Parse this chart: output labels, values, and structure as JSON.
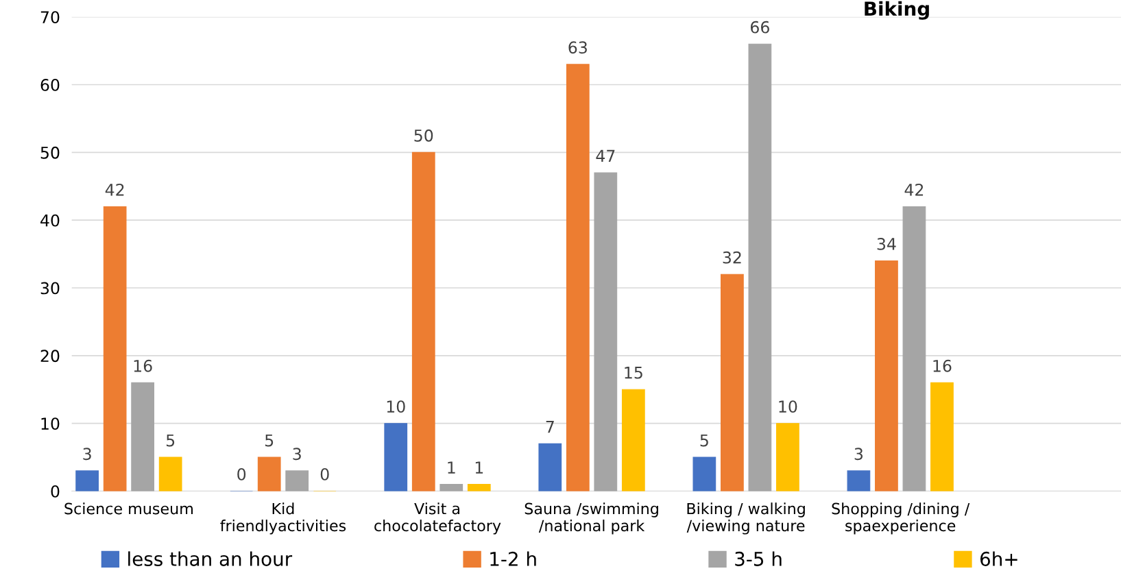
{
  "chart_data": {
    "type": "bar",
    "title": "Biking",
    "categories": [
      "Science museum",
      "Kid\nfriendlyactivities",
      "Visit a\nchocolatefactory",
      "Sauna /swimming\n/national park",
      "Biking / walking\n/viewing nature",
      "Shopping /dining /\nspaexperience",
      null
    ],
    "series": [
      {
        "name": "less than an hour",
        "color": "#4472c4",
        "values": [
          3,
          0,
          10,
          7,
          5,
          3,
          null
        ]
      },
      {
        "name": "1-2 h",
        "color": "#ed7d31",
        "values": [
          42,
          5,
          50,
          63,
          32,
          34,
          null
        ]
      },
      {
        "name": "3-5 h",
        "color": "#a5a5a5",
        "values": [
          16,
          3,
          1,
          47,
          66,
          42,
          null
        ]
      },
      {
        "name": "6h+",
        "color": "#ffc000",
        "values": [
          5,
          0,
          1,
          15,
          10,
          16,
          null
        ]
      }
    ],
    "ylim": [
      0,
      70
    ],
    "yticks": [
      0,
      10,
      20,
      30,
      40,
      50,
      60,
      70
    ],
    "grid": "y",
    "legend": "bottom",
    "data_labels": true
  }
}
